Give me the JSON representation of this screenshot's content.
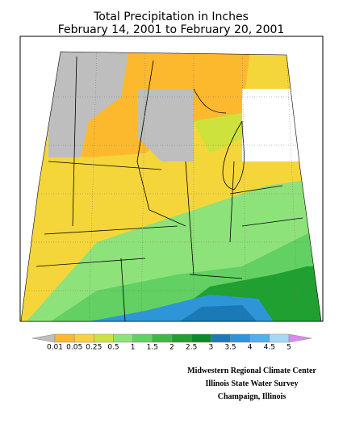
{
  "title": {
    "line1": "Total Precipitation in Inches",
    "line2": "February 14, 2001  to February 20, 2001"
  },
  "legend": {
    "labels": [
      0.01,
      0.05,
      0.25,
      0.5,
      1,
      1.5,
      2,
      2.5,
      3,
      3.5,
      4,
      4.5,
      5
    ],
    "under_color": "#bebebe",
    "over_color": "#d98cf0",
    "colors": [
      "#fdb92e",
      "#f7d23a",
      "#cde23c",
      "#8ee27a",
      "#62d062",
      "#40b848",
      "#20a030",
      "#0a8a2a",
      "#1a7ab8",
      "#2e96d8",
      "#50b0ec",
      "#a8d8f6"
    ]
  },
  "credits": [
    "Midwestern Regional Climate Center",
    "Illinois State Water Survey",
    "Champaign, Illinois"
  ]
}
